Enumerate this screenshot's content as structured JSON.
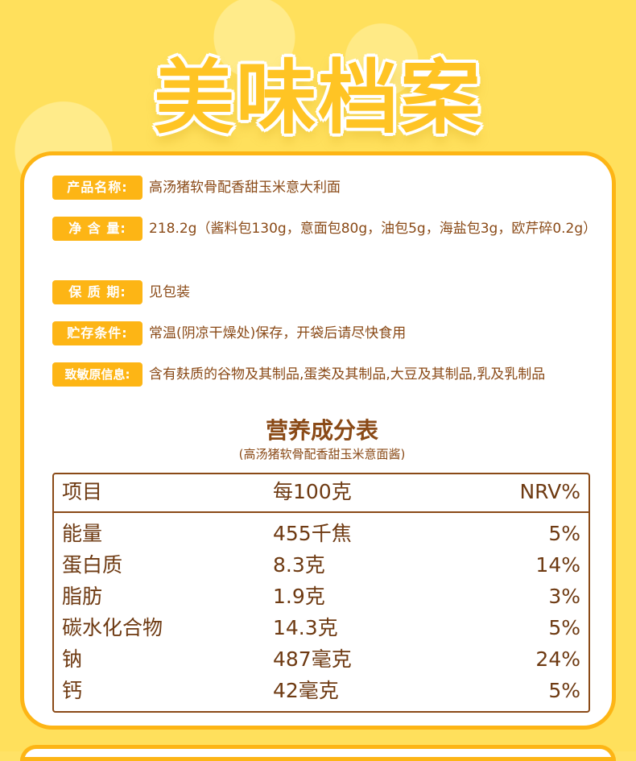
{
  "header": {
    "title": "美味档案"
  },
  "info": [
    {
      "label": "产品名称:",
      "value": "高汤猪软骨配香甜玉米意大利面"
    },
    {
      "label": "净 含 量:",
      "value": "218.2g（酱料包130g，意面包80g，油包5g，海盐包3g，欧芹碎0.2g）"
    },
    {
      "label": "保 质 期:",
      "value": "见包装"
    },
    {
      "label": "贮存条件:",
      "value": "常温(阴凉干燥处)保存，开袋后请尽快食用"
    },
    {
      "label": "致敏原信息:",
      "value": "含有麸质的谷物及其制品,蛋类及其制品,大豆及其制品,乳及乳制品"
    }
  ],
  "nutrition": {
    "title": "营养成分表",
    "subtitle": "(高汤猪软骨配香甜玉米意面酱)",
    "headers": [
      "项目",
      "每100克",
      "NRV%"
    ],
    "rows": [
      [
        "能量",
        "455千焦",
        "5%"
      ],
      [
        "蛋白质",
        "8.3克",
        "14%"
      ],
      [
        "脂肪",
        "1.9克",
        "3%"
      ],
      [
        "碳水化合物",
        "14.3克",
        "5%"
      ],
      [
        "钠",
        "487毫克",
        "24%"
      ],
      [
        "钙",
        "42毫克",
        "5%"
      ]
    ]
  },
  "colors": {
    "accent": "#FDB515",
    "text": "#8A4A17",
    "background": "#FFE05C"
  }
}
